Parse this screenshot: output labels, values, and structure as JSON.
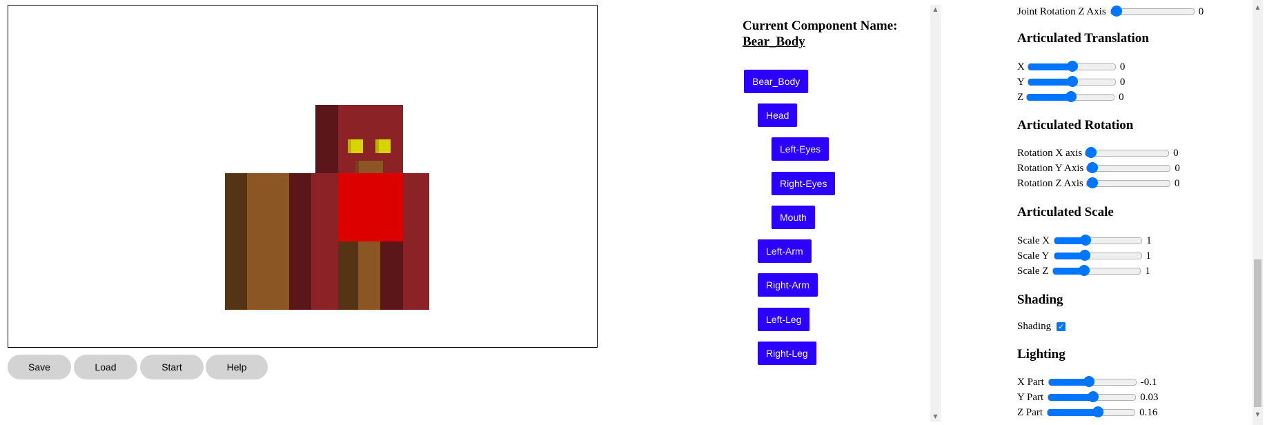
{
  "buttons": {
    "save": "Save",
    "load": "Load",
    "start": "Start",
    "help": "Help"
  },
  "component": {
    "title": "Current Component Name:",
    "name": "Bear_Body",
    "tree": [
      "Bear_Body",
      "Head",
      "Left-Eyes",
      "Right-Eyes",
      "Mouth",
      "Left-Arm",
      "Right-Arm",
      "Left-Leg",
      "Right-Leg"
    ]
  },
  "controls": {
    "joint_rot_z": {
      "label": "Joint Rotation Z Axis",
      "value": "0",
      "fraction": 0.0
    },
    "art_translation": {
      "title": "Articulated Translation",
      "x": {
        "label": "X",
        "value": "0",
        "fraction": 0.5
      },
      "y": {
        "label": "Y",
        "value": "0",
        "fraction": 0.5
      },
      "z": {
        "label": "Z",
        "value": "0",
        "fraction": 0.5
      }
    },
    "art_rotation": {
      "title": "Articulated Rotation",
      "x": {
        "label": "Rotation X axis",
        "value": "0",
        "fraction": 0.0
      },
      "y": {
        "label": "Rotation Y Axis",
        "value": "0",
        "fraction": 0.0
      },
      "z": {
        "label": "Rotation Z Axis",
        "value": "0",
        "fraction": 0.0
      }
    },
    "art_scale": {
      "title": "Articulated Scale",
      "x": {
        "label": "Scale X",
        "value": "1",
        "fraction": 0.33
      },
      "y": {
        "label": "Scale Y",
        "value": "1",
        "fraction": 0.33
      },
      "z": {
        "label": "Scale Z",
        "value": "1",
        "fraction": 0.33
      }
    },
    "shading": {
      "title": "Shading",
      "label": "Shading",
      "checked": true
    },
    "lighting": {
      "title": "Lighting",
      "x": {
        "label": "X Part",
        "value": "-0.1",
        "fraction": 0.45
      },
      "y": {
        "label": "Y Part",
        "value": "0.03",
        "fraction": 0.51
      },
      "z": {
        "label": "Z Part",
        "value": "0.16",
        "fraction": 0.58
      }
    }
  },
  "colors": {
    "head_dark": "#5a1619",
    "head": "#8b2326",
    "eye": "#d9d400",
    "mouth": "#8b5524",
    "body_red": "#dd0000",
    "leg_brown_dark": "#553315",
    "leg_brown": "#8b5524",
    "leg_maroon": "#5a1619",
    "leg_red": "#8b2326",
    "button_blue": "#2b00ff",
    "slider_blue": "#0075ff"
  }
}
